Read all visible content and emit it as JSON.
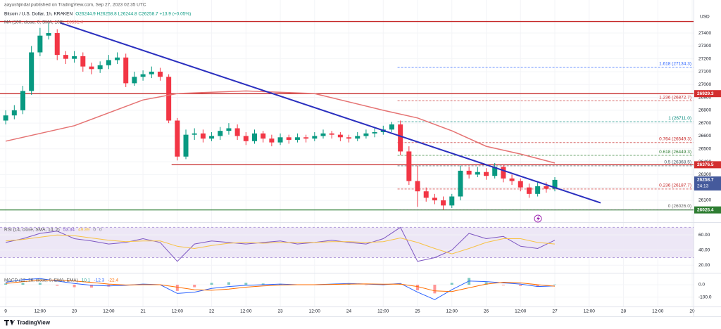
{
  "header": {
    "publisher": "aayushjindal published on TradingView.com, Sep 27, 2023 02:35 UTC",
    "symbol": "Bitcoin / U.S. Dollar, 1h, KRAKEN",
    "ohlc": "O26244.9 H26258.8 L26244.8 C26258.7 +13.9 (+0.05%)",
    "ma_label": "MA (100, close, 0, SMA, 100)",
    "ma_value": "26391.4"
  },
  "footer": {
    "brand": "TradingView"
  },
  "chart_data": [
    {
      "type": "candlestick",
      "currency": "USD",
      "x": [
        0,
        3,
        6,
        9,
        12,
        15,
        18,
        21,
        24,
        27,
        30,
        33,
        36,
        39,
        42,
        45,
        48,
        51,
        54,
        57,
        60,
        63,
        66,
        69,
        72,
        75,
        78,
        81,
        84,
        87,
        90,
        93,
        96,
        99,
        102,
        105,
        108,
        111,
        114,
        117,
        120,
        123,
        126,
        129,
        132,
        135,
        138,
        141,
        144,
        147,
        150,
        153,
        156,
        159,
        162,
        165,
        168,
        171,
        174,
        177,
        180,
        183,
        186,
        189,
        192
      ],
      "open": [
        26720,
        26760,
        26800,
        26950,
        27250,
        27380,
        27400,
        27230,
        27200,
        27220,
        27140,
        27120,
        27150,
        27190,
        27210,
        27010,
        27060,
        27080,
        27100,
        27060,
        26720,
        26440,
        26610,
        26620,
        26580,
        26600,
        26640,
        26660,
        26600,
        26560,
        26620,
        26580,
        26550,
        26590,
        26570,
        26590,
        26580,
        26600,
        26620,
        26610,
        26590,
        26580,
        26600,
        26620,
        26630,
        26650,
        26690,
        26480,
        26250,
        26170,
        26120,
        26100,
        26060,
        26130,
        26330,
        26300,
        26320,
        26290,
        26360,
        26270,
        26250,
        26200,
        26150,
        26210,
        26190
      ],
      "high": [
        26800,
        26840,
        26990,
        27300,
        27440,
        27480,
        27430,
        27260,
        27260,
        27250,
        27170,
        27180,
        27230,
        27250,
        27240,
        27100,
        27110,
        27140,
        27130,
        27080,
        26740,
        26650,
        26660,
        26650,
        26630,
        26670,
        26700,
        26690,
        26630,
        26650,
        26640,
        26610,
        26620,
        26610,
        26620,
        26610,
        26630,
        26650,
        26640,
        26630,
        26610,
        26630,
        26650,
        26660,
        26680,
        26710,
        26720,
        26520,
        26370,
        26200,
        26150,
        26130,
        26150,
        26370,
        26360,
        26360,
        26350,
        26390,
        26380,
        26300,
        26270,
        26230,
        26240,
        26240,
        26280
      ],
      "low": [
        26690,
        26730,
        26770,
        26920,
        27220,
        27350,
        27190,
        27160,
        27170,
        27100,
        27080,
        27090,
        27120,
        27160,
        26980,
        26990,
        27030,
        27050,
        27030,
        26700,
        26410,
        26420,
        26570,
        26550,
        26560,
        26570,
        26610,
        26570,
        26530,
        26540,
        26550,
        26520,
        26530,
        26540,
        26550,
        26550,
        26560,
        26580,
        26580,
        26560,
        26550,
        26560,
        26580,
        26590,
        26610,
        26630,
        26450,
        26220,
        26050,
        26090,
        26070,
        26026,
        26040,
        26100,
        26270,
        26280,
        26260,
        26270,
        26240,
        26220,
        26170,
        26120,
        26130,
        26160,
        26170
      ],
      "close": [
        26760,
        26800,
        26950,
        27250,
        27380,
        27400,
        27230,
        27200,
        27220,
        27140,
        27120,
        27150,
        27190,
        27210,
        27010,
        27060,
        27080,
        27100,
        27060,
        26720,
        26440,
        26610,
        26620,
        26580,
        26600,
        26640,
        26660,
        26600,
        26560,
        26620,
        26580,
        26550,
        26590,
        26570,
        26590,
        26580,
        26600,
        26620,
        26610,
        26590,
        26580,
        26600,
        26620,
        26630,
        26650,
        26690,
        26480,
        26250,
        26170,
        26120,
        26100,
        26060,
        26130,
        26330,
        26300,
        26320,
        26290,
        26360,
        26270,
        26250,
        26200,
        26150,
        26210,
        26190,
        26259
      ],
      "up_color": "#089981",
      "down_color": "#f23645",
      "xlim": [
        -2,
        240.5
      ],
      "xticks": [
        {
          "value": 0,
          "label": "9"
        },
        {
          "value": 12,
          "label": "12:00"
        },
        {
          "value": 24,
          "label": "20"
        },
        {
          "value": 36,
          "label": "12:00"
        },
        {
          "value": 48,
          "label": "21"
        },
        {
          "value": 60,
          "label": "12:00"
        },
        {
          "value": 72,
          "label": "22"
        },
        {
          "value": 84,
          "label": "12:00"
        },
        {
          "value": 96,
          "label": "23"
        },
        {
          "value": 108,
          "label": "12:00"
        },
        {
          "value": 120,
          "label": "24"
        },
        {
          "value": 132,
          "label": "12:00"
        },
        {
          "value": 144,
          "label": "25"
        },
        {
          "value": 156,
          "label": "12:00"
        },
        {
          "value": 168,
          "label": "26"
        },
        {
          "value": 180,
          "label": "12:00"
        },
        {
          "value": 192,
          "label": "27"
        },
        {
          "value": 204,
          "label": "12:00"
        },
        {
          "value": 216,
          "label": "28"
        },
        {
          "value": 228,
          "label": "12:00"
        },
        {
          "value": 240,
          "label": "29"
        }
      ],
      "ylim": [
        25936,
        27657
      ],
      "yticks": [
        26100,
        26200,
        26300,
        26400,
        26500,
        26600,
        26700,
        26800,
        26900,
        27000,
        27100,
        27200,
        27300,
        27400
      ],
      "ma": {
        "color": "#e57373",
        "x": [
          0,
          24,
          48,
          60,
          84,
          108,
          132,
          144,
          156,
          168,
          180,
          192
        ],
        "values": [
          26560,
          26680,
          26880,
          26930,
          26950,
          26930,
          26800,
          26740,
          26640,
          26520,
          26460,
          26390
        ]
      },
      "trendline": {
        "color": "#2a2fbf",
        "x": [
          19,
          208
        ],
        "values": [
          27480,
          26080
        ]
      },
      "levels": [
        {
          "value": 27490,
          "color": "#c62828"
        },
        {
          "value": 26929.3,
          "color": "#c62828"
        },
        {
          "value": 26376.5,
          "color": "#c62828",
          "from": 58
        },
        {
          "value": 26025.4,
          "color": "#2e7d32"
        }
      ],
      "price_tags": [
        {
          "value": 26929.3,
          "color": "#d32f2f"
        },
        {
          "value": 26376.5,
          "color": "#d32f2f"
        },
        {
          "value": 26258.7,
          "color": "#455a9c",
          "countdown": "24:13"
        },
        {
          "value": 26025.4,
          "color": "#2e7d32"
        }
      ],
      "fib": {
        "from": 137,
        "levels": [
          {
            "value": 27134.3,
            "label": "1.618 (27134.3)",
            "color": "#2962ff"
          },
          {
            "value": 26872.7,
            "label": "1.236 (26872.7)",
            "color": "#c62828"
          },
          {
            "value": 26711.0,
            "label": "1 (26711.0)",
            "color": "#00897b"
          },
          {
            "value": 26549.3,
            "label": "0.764 (26549.3)",
            "color": "#c62828"
          },
          {
            "value": 26449.3,
            "label": "0.618 (26449.3)",
            "color": "#2e7d32"
          },
          {
            "value": 26368.5,
            "label": "0.5 (26368.5)",
            "color": "#455a64"
          },
          {
            "value": 26187.7,
            "label": "0.236 (26187.7)",
            "color": "#c62828"
          },
          {
            "value": 26026.0,
            "label": "0 (26026.0)",
            "color": "#616161"
          }
        ]
      }
    },
    {
      "type": "line",
      "title": "RSI (14, close, SMA, 14, 2)",
      "readouts": [
        53.34,
        49.89,
        0,
        0
      ],
      "readout_colors": [
        "#7e57c2",
        "#f7c244",
        "#787b86",
        "#787b86"
      ],
      "x": [
        0,
        6,
        12,
        18,
        24,
        30,
        36,
        42,
        48,
        54,
        60,
        66,
        72,
        78,
        84,
        90,
        96,
        102,
        108,
        114,
        120,
        126,
        132,
        138,
        144,
        150,
        156,
        162,
        168,
        174,
        180,
        186,
        192
      ],
      "series": [
        {
          "color": "#7e57c2",
          "values": [
            50,
            55,
            62,
            65,
            55,
            52,
            48,
            50,
            55,
            50,
            25,
            48,
            52,
            50,
            48,
            50,
            52,
            48,
            50,
            53,
            50,
            48,
            55,
            70,
            25,
            30,
            40,
            62,
            55,
            58,
            45,
            42,
            53
          ]
        },
        {
          "color": "#f7c244",
          "values": [
            52,
            54,
            57,
            60,
            59,
            56,
            53,
            51,
            52,
            52,
            45,
            42,
            46,
            49,
            50,
            49,
            50,
            50,
            50,
            51,
            51,
            50,
            51,
            56,
            50,
            42,
            35,
            42,
            50,
            55,
            55,
            50,
            48
          ]
        }
      ],
      "band": [
        30,
        70
      ],
      "band_color": "#ede7f6",
      "ylim": [
        10,
        75
      ],
      "yticks": [
        {
          "value": 60,
          "label": "60.00"
        },
        {
          "value": 40,
          "label": "40.00"
        },
        {
          "value": 20,
          "label": "20.00"
        }
      ]
    },
    {
      "type": "macd",
      "title": "MACD (12, 26, close, 9, EMA, EMA)",
      "readouts": [
        10.1,
        -12.3,
        -22.4
      ],
      "readout_colors": [
        "#26a69a",
        "#2962ff",
        "#ff6d00"
      ],
      "x": [
        0,
        6,
        12,
        18,
        24,
        30,
        36,
        42,
        48,
        54,
        60,
        66,
        72,
        78,
        84,
        90,
        96,
        102,
        108,
        114,
        120,
        126,
        132,
        138,
        144,
        150,
        156,
        162,
        168,
        174,
        180,
        186,
        192
      ],
      "histogram": {
        "up_color": "#26a69a",
        "down_color": "#ff5252",
        "values": [
          10,
          15,
          15,
          -8,
          -20,
          -23,
          -15,
          -3,
          5,
          0,
          -50,
          -20,
          15,
          20,
          15,
          10,
          7,
          0,
          0,
          3,
          5,
          -1,
          -4,
          5,
          -45,
          -70,
          15,
          55,
          20,
          -5,
          -10,
          -15,
          2
        ]
      },
      "series": [
        {
          "color": "#2962ff",
          "values": [
            20,
            40,
            50,
            30,
            10,
            -5,
            -10,
            -5,
            5,
            0,
            -70,
            -60,
            -30,
            -15,
            -5,
            0,
            5,
            0,
            0,
            5,
            10,
            5,
            0,
            10,
            -60,
            -120,
            -40,
            30,
            25,
            15,
            5,
            -15,
            -10
          ]
        },
        {
          "color": "#ff6d00",
          "values": [
            10,
            25,
            35,
            38,
            30,
            18,
            5,
            -2,
            0,
            0,
            -20,
            -40,
            -45,
            -35,
            -20,
            -10,
            -2,
            0,
            0,
            2,
            5,
            6,
            4,
            5,
            -15,
            -50,
            -55,
            -25,
            5,
            20,
            15,
            0,
            -12
          ]
        }
      ],
      "ylim": [
        -170,
        85
      ],
      "yticks": [
        {
          "value": 0,
          "label": "0.0"
        },
        {
          "value": -100,
          "label": "-100.0"
        }
      ]
    }
  ]
}
